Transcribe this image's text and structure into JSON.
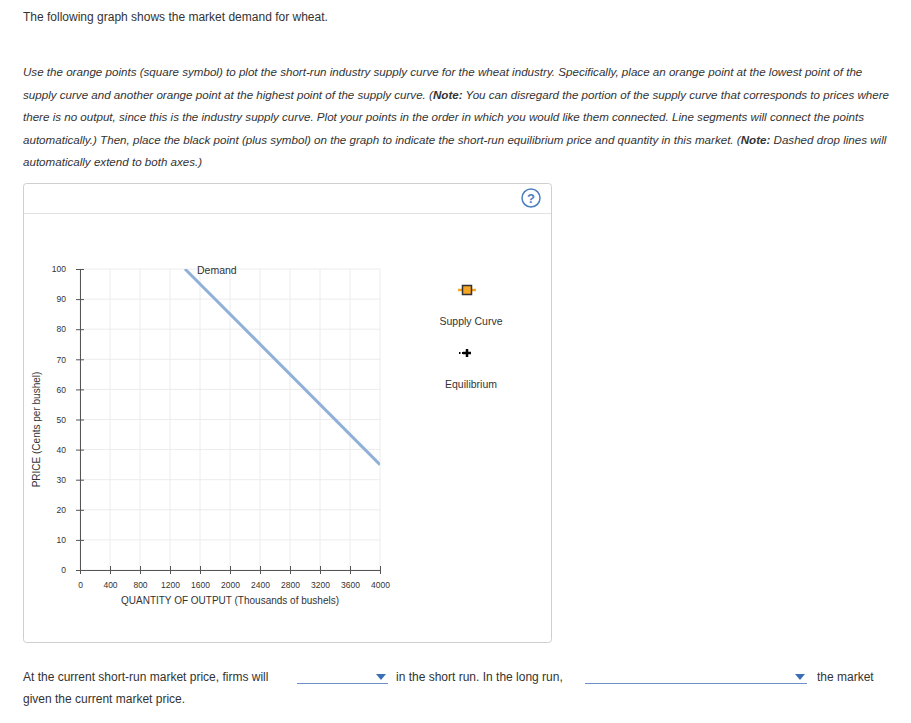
{
  "chart_data": {
    "type": "line",
    "x_label": "QUANTITY OF OUTPUT (Thousands of bushels)",
    "y_label": "PRICE (Cents per bushel)",
    "x": [
      1400,
      4000
    ],
    "series": [
      {
        "name": "Demand",
        "color": "#8fb0d8",
        "values": [
          100,
          35
        ]
      }
    ],
    "xlim": [
      0,
      4000
    ],
    "ylim": [
      0,
      100
    ],
    "xticks": [
      0,
      400,
      800,
      1200,
      1600,
      2000,
      2400,
      2800,
      3200,
      3600,
      4000
    ],
    "yticks": [
      0,
      10,
      20,
      30,
      40,
      50,
      60,
      70,
      80,
      90,
      100
    ],
    "grid": true
  },
  "page": {
    "intro": "The following graph shows the market demand for wheat.",
    "instructions": [
      {
        "text": "Use the orange points (square symbol) to plot the short-run industry supply curve for the wheat industry. Specifically, place an orange point at the lowest point of the supply curve and another orange point at the highest point of the supply curve. (",
        "bold": false
      },
      {
        "text": "Note:",
        "bold": true
      },
      {
        "text": " You can disregard the portion of the supply curve that corresponds to prices where there is no output, since this is the industry supply curve. Plot your points in the order in which you would like them connected. Line segments will connect the points automatically.) Then, place the black point (plus symbol) on the graph to indicate the short-run equilibrium price and quantity in this market. (",
        "bold": false
      },
      {
        "text": "Note:",
        "bold": true
      },
      {
        "text": " Dashed drop lines will automatically extend to both axes.)",
        "bold": false
      }
    ],
    "help": "?",
    "tools": [
      {
        "label": "Supply Curve",
        "color": "#f5a623",
        "marker": "square"
      },
      {
        "label": "Equilibrium",
        "color": "#000000",
        "marker": "plus"
      }
    ],
    "question": [
      "At the current short-run market price, firms will",
      "in the short run. In the long run,",
      "the market",
      "given the current market price."
    ]
  }
}
